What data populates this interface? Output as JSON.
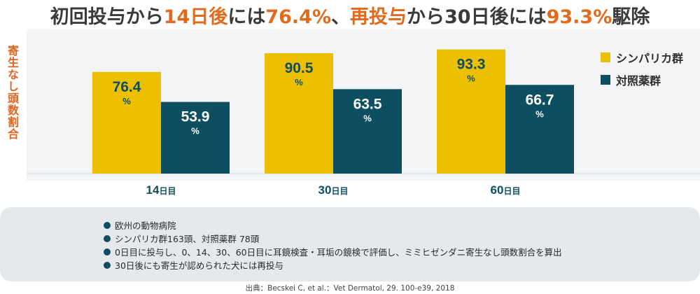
{
  "headline": {
    "part1": "初回投与から",
    "part2": "14日後",
    "part3": "には",
    "part4": "76.4%",
    "part5": "、",
    "part6": "再投与",
    "part7": "から30日後には",
    "part8": "93.3%",
    "part9": "駆除"
  },
  "colors": {
    "accent_text": "#e26a1c",
    "ylabel": "#e0641e",
    "simparica": "#ecbf00",
    "control": "#0d4f60"
  },
  "notes": [
    "欧州の動物病院",
    "シンパリカ群163頭、対照薬群 78頭",
    "0日目に投与し、0、14、30、60日目に耳鏡検査・耳垢の鏡検で評価し、ミミヒゼンダニ寄生なし頭数割合を算出",
    "30日後にも寄生が認められた犬には再投与"
  ],
  "source": "出典：Becskei C, et al.：Vet Dermatol, 29. 100-e39, 2018",
  "chart_data": {
    "type": "bar",
    "title": "",
    "ylabel": "寄生なし頭数割合",
    "xlabel": "",
    "ylim": [
      0,
      100
    ],
    "grid": false,
    "legend_position": "right",
    "value_unit": "%",
    "categories": [
      {
        "number": "14",
        "suffix": "日目"
      },
      {
        "number": "30",
        "suffix": "日目"
      },
      {
        "number": "60",
        "suffix": "日目"
      }
    ],
    "series": [
      {
        "name": "シンパリカ群",
        "color": "#ecbf00",
        "values": [
          76.4,
          90.5,
          93.3
        ],
        "labels": [
          "76.4",
          "90.5",
          "93.3"
        ]
      },
      {
        "name": "対照薬群",
        "color": "#0d4f60",
        "values": [
          53.9,
          63.5,
          66.7
        ],
        "labels": [
          "53.9",
          "63.5",
          "66.7"
        ]
      }
    ]
  }
}
